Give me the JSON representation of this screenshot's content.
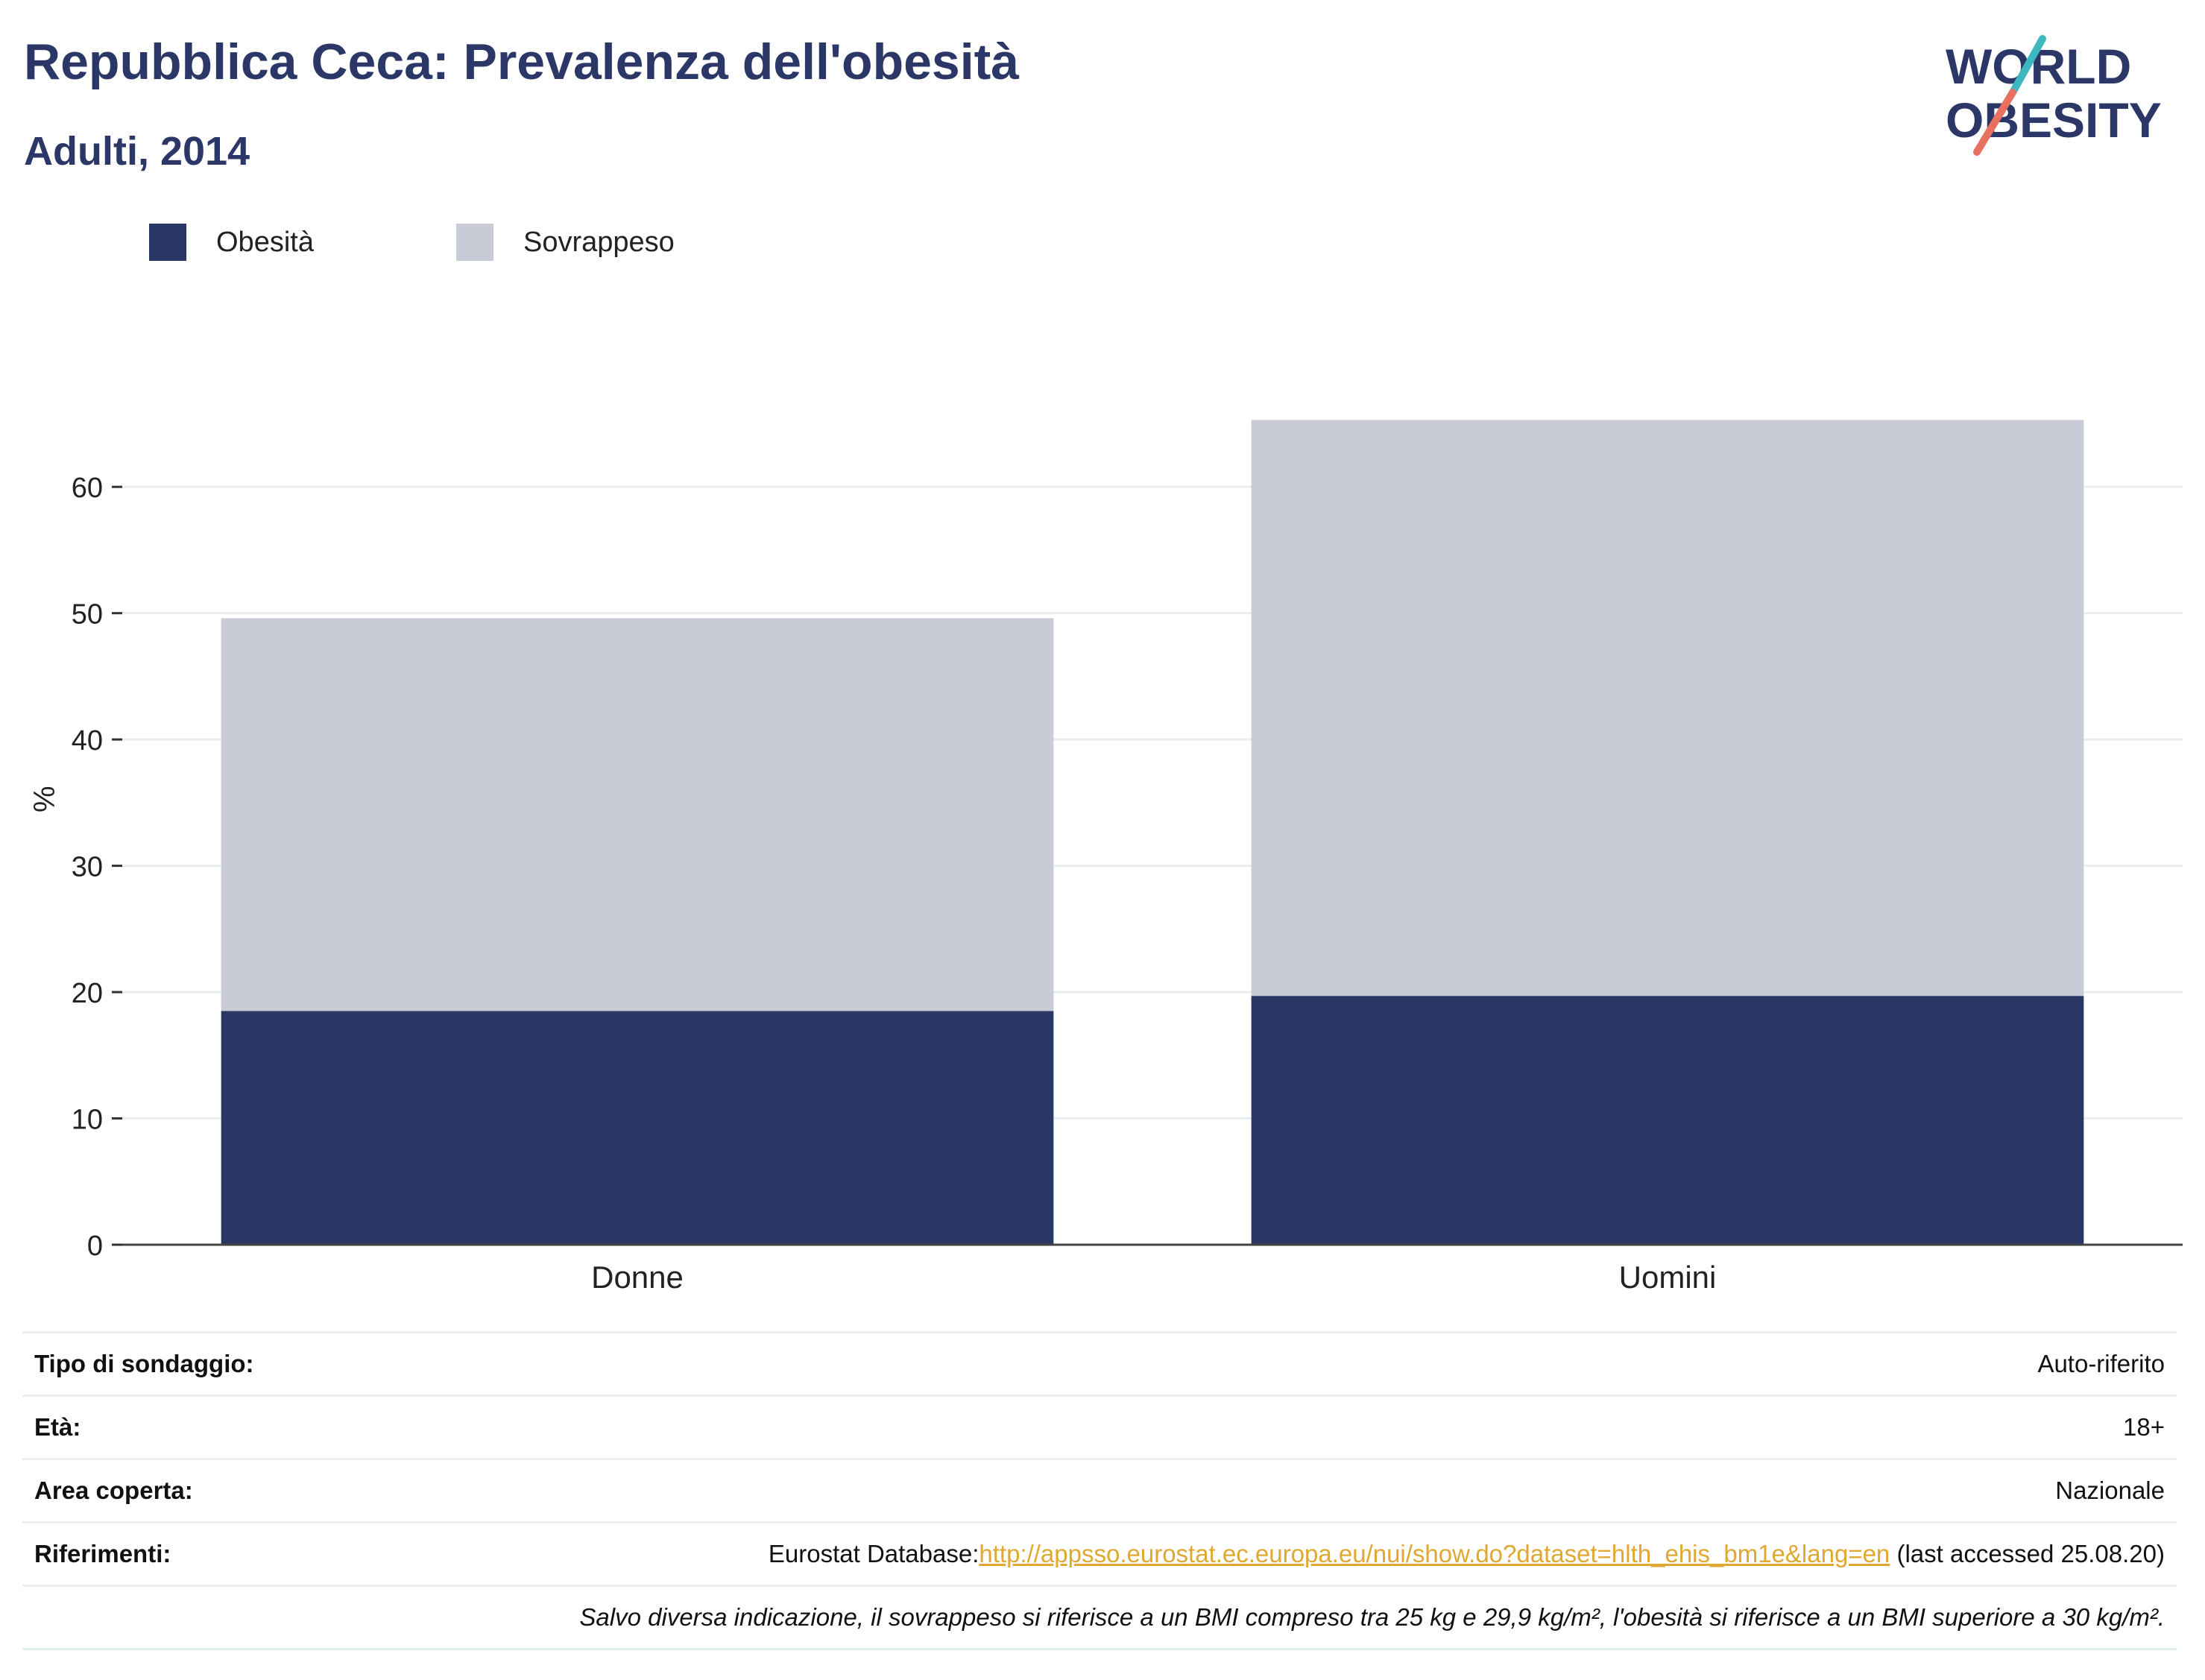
{
  "header": {
    "title": "Repubblica Ceca: Prevalenza dell'obesità",
    "subtitle": "Adulti, 2014"
  },
  "logo": {
    "line1": "WORLD",
    "line2": "OBESITY"
  },
  "colors": {
    "obesity": "#2a3663",
    "overweight": "#c9cbd7",
    "title": "#2b3766",
    "link": "#e0a830",
    "logo_teal": "#3db8c0",
    "logo_coral": "#e8705e"
  },
  "chart_data": {
    "type": "bar",
    "stacked": true,
    "categories": [
      "Donne",
      "Uomini"
    ],
    "series": [
      {
        "name": "Obesità",
        "values": [
          18.5,
          19.7
        ],
        "color": "#2a3663"
      },
      {
        "name": "Sovrappeso",
        "values": [
          31.1,
          45.6
        ],
        "color": "#c9cbd7"
      }
    ],
    "ylabel": "%",
    "ylim": [
      0,
      65.5
    ],
    "yticks": [
      0,
      10,
      20,
      30,
      40,
      50,
      60
    ],
    "grid": true,
    "legend": "top-left"
  },
  "info": {
    "rows": [
      {
        "key": "Tipo di sondaggio:",
        "value": "Auto-riferito"
      },
      {
        "key": "Età:",
        "value": "18+"
      },
      {
        "key": "Area coperta:",
        "value": "Nazionale"
      }
    ],
    "references": {
      "key": "Riferimenti:",
      "prefix": "Eurostat Database:",
      "link": "http://appsso.eurostat.ec.europa.eu/nui/show.do?dataset=hlth_ehis_bm1e&lang=en",
      "suffix": " (last accessed 25.08.20)"
    },
    "note": "Salvo diversa indicazione, il sovrappeso si riferisce a un BMI compreso tra 25 kg e 29,9 kg/m², l'obesità si riferisce a un BMI superiore a 30 kg/m²."
  }
}
